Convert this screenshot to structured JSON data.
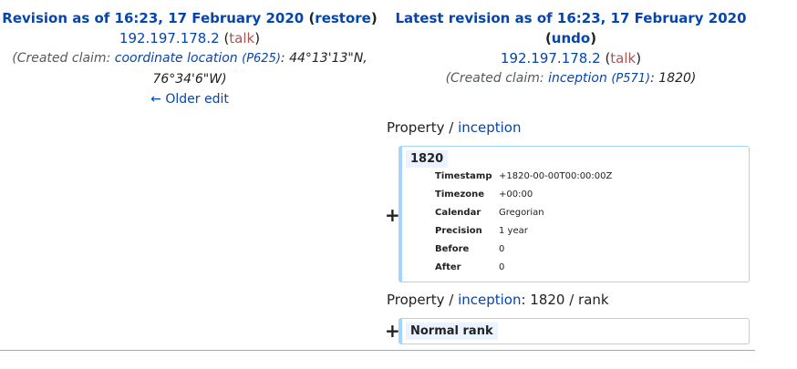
{
  "left": {
    "revision_title": "Revision as of 16:23, 17 February 2020",
    "restore": "restore",
    "ip": "192.197.178.2",
    "talk": "talk",
    "summary_prefix": "(Created claim:",
    "summary_link": "coordinate location",
    "summary_pid": "(P625)",
    "summary_value_line1": ": 44°13'13\"N,",
    "summary_value_line2": "76°34'6\"W)",
    "older_edit": "← Older edit"
  },
  "right": {
    "revision_title": "Latest revision as of 16:23, 17 February 2020",
    "undo": "undo",
    "ip": "192.197.178.2",
    "talk": "talk",
    "summary_prefix": "(Created claim:",
    "summary_link": "inception",
    "summary_pid": "(P571)",
    "summary_value": ": 1820)"
  },
  "section1": {
    "prefix": "Property / ",
    "link": "inception",
    "plus": "+",
    "value": "1820",
    "details": [
      {
        "key": "Timestamp",
        "value": "+1820-00-00T00:00:00Z"
      },
      {
        "key": "Timezone",
        "value": "+00:00"
      },
      {
        "key": "Calendar",
        "value": "Gregorian"
      },
      {
        "key": "Precision",
        "value": "1 year"
      },
      {
        "key": "Before",
        "value": "0"
      },
      {
        "key": "After",
        "value": "0"
      }
    ]
  },
  "section2": {
    "prefix": "Property / ",
    "link": "inception",
    "suffix": ": 1820 / rank",
    "plus": "+",
    "value": "Normal rank"
  },
  "colors": {
    "link": "#0645ad",
    "talk": "#a55858",
    "box_border": "#a3d3ff",
    "highlight": "#eaf3ff"
  }
}
